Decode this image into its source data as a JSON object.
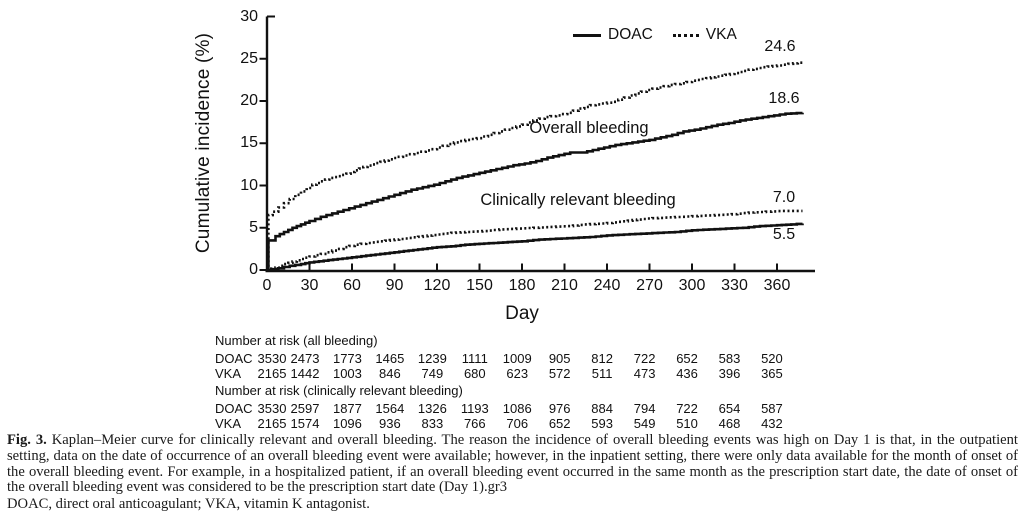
{
  "chart_data": {
    "type": "line",
    "subtype": "kaplan-meier-step",
    "ylabel": "Cumulative incidence (%)",
    "xlabel": "Day",
    "ylim": [
      0,
      30
    ],
    "xlim": [
      0,
      388
    ],
    "yticks": [
      0,
      5,
      10,
      15,
      20,
      25,
      30
    ],
    "xticks": [
      0,
      30,
      60,
      90,
      120,
      150,
      180,
      210,
      240,
      270,
      300,
      330,
      360
    ],
    "grid": false,
    "legend_position": "top-right-inside",
    "legend": [
      {
        "label": "DOAC",
        "style": "solid"
      },
      {
        "label": "VKA",
        "style": "dotted"
      }
    ],
    "annotations": {
      "overall": "Overall bleeding",
      "clinically_relevant": "Clinically relevant bleeding"
    },
    "series": [
      {
        "name": "VKA overall bleeding",
        "style": "dotted",
        "end_label": "24.6",
        "points": [
          [
            0,
            0
          ],
          [
            1,
            6.5
          ],
          [
            4,
            6.9
          ],
          [
            8,
            7.4
          ],
          [
            12,
            7.9
          ],
          [
            16,
            8.4
          ],
          [
            20,
            8.9
          ],
          [
            24,
            9.3
          ],
          [
            28,
            9.7
          ],
          [
            32,
            10.1
          ],
          [
            38,
            10.5
          ],
          [
            44,
            10.9
          ],
          [
            50,
            11.1
          ],
          [
            56,
            11.4
          ],
          [
            62,
            11.8
          ],
          [
            68,
            12.2
          ],
          [
            74,
            12.5
          ],
          [
            80,
            12.8
          ],
          [
            86,
            13.1
          ],
          [
            92,
            13.4
          ],
          [
            100,
            13.7
          ],
          [
            108,
            14.0
          ],
          [
            116,
            14.3
          ],
          [
            124,
            14.7
          ],
          [
            132,
            15.1
          ],
          [
            140,
            15.4
          ],
          [
            148,
            15.6
          ],
          [
            156,
            16.0
          ],
          [
            164,
            16.4
          ],
          [
            172,
            16.8
          ],
          [
            180,
            17.2
          ],
          [
            188,
            17.7
          ],
          [
            196,
            18.1
          ],
          [
            204,
            18.3
          ],
          [
            212,
            18.6
          ],
          [
            220,
            19.1
          ],
          [
            228,
            19.5
          ],
          [
            236,
            19.7
          ],
          [
            244,
            19.9
          ],
          [
            252,
            20.4
          ],
          [
            260,
            20.9
          ],
          [
            268,
            21.3
          ],
          [
            276,
            21.6
          ],
          [
            284,
            21.9
          ],
          [
            292,
            22.1
          ],
          [
            300,
            22.4
          ],
          [
            310,
            22.7
          ],
          [
            320,
            23.0
          ],
          [
            330,
            23.3
          ],
          [
            340,
            23.7
          ],
          [
            350,
            24.0
          ],
          [
            360,
            24.2
          ],
          [
            368,
            24.4
          ],
          [
            378,
            24.6
          ]
        ]
      },
      {
        "name": "DOAC overall bleeding",
        "style": "solid",
        "end_label": "18.6",
        "points": [
          [
            0,
            0
          ],
          [
            1,
            3.5
          ],
          [
            6,
            4.0
          ],
          [
            12,
            4.5
          ],
          [
            18,
            5.0
          ],
          [
            24,
            5.4
          ],
          [
            30,
            5.8
          ],
          [
            38,
            6.3
          ],
          [
            46,
            6.7
          ],
          [
            54,
            7.1
          ],
          [
            62,
            7.5
          ],
          [
            70,
            7.9
          ],
          [
            78,
            8.3
          ],
          [
            86,
            8.7
          ],
          [
            94,
            9.1
          ],
          [
            102,
            9.5
          ],
          [
            110,
            9.8
          ],
          [
            118,
            10.1
          ],
          [
            126,
            10.5
          ],
          [
            134,
            10.9
          ],
          [
            142,
            11.2
          ],
          [
            150,
            11.5
          ],
          [
            158,
            11.8
          ],
          [
            166,
            12.1
          ],
          [
            174,
            12.4
          ],
          [
            182,
            12.6
          ],
          [
            190,
            12.9
          ],
          [
            198,
            13.3
          ],
          [
            206,
            13.6
          ],
          [
            214,
            13.9
          ],
          [
            222,
            13.9
          ],
          [
            230,
            14.2
          ],
          [
            238,
            14.5
          ],
          [
            246,
            14.8
          ],
          [
            254,
            15.0
          ],
          [
            262,
            15.2
          ],
          [
            270,
            15.4
          ],
          [
            278,
            15.7
          ],
          [
            286,
            16.0
          ],
          [
            294,
            16.4
          ],
          [
            302,
            16.6
          ],
          [
            310,
            16.9
          ],
          [
            318,
            17.2
          ],
          [
            326,
            17.4
          ],
          [
            334,
            17.7
          ],
          [
            342,
            17.9
          ],
          [
            350,
            18.1
          ],
          [
            358,
            18.3
          ],
          [
            366,
            18.5
          ],
          [
            378,
            18.6
          ]
        ]
      },
      {
        "name": "VKA clinically relevant bleeding",
        "style": "dotted",
        "end_label": "7.0",
        "points": [
          [
            0,
            0
          ],
          [
            6,
            0.3
          ],
          [
            12,
            0.7
          ],
          [
            18,
            1.0
          ],
          [
            24,
            1.3
          ],
          [
            30,
            1.6
          ],
          [
            38,
            1.9
          ],
          [
            46,
            2.3
          ],
          [
            54,
            2.7
          ],
          [
            62,
            3.0
          ],
          [
            70,
            3.2
          ],
          [
            80,
            3.4
          ],
          [
            90,
            3.6
          ],
          [
            100,
            3.8
          ],
          [
            110,
            4.0
          ],
          [
            120,
            4.2
          ],
          [
            130,
            4.4
          ],
          [
            140,
            4.5
          ],
          [
            152,
            4.6
          ],
          [
            164,
            4.8
          ],
          [
            176,
            4.9
          ],
          [
            188,
            5.0
          ],
          [
            200,
            5.1
          ],
          [
            212,
            5.2
          ],
          [
            224,
            5.4
          ],
          [
            236,
            5.5
          ],
          [
            248,
            5.7
          ],
          [
            258,
            5.9
          ],
          [
            268,
            6.1
          ],
          [
            280,
            6.2
          ],
          [
            292,
            6.3
          ],
          [
            304,
            6.4
          ],
          [
            316,
            6.5
          ],
          [
            328,
            6.6
          ],
          [
            340,
            6.8
          ],
          [
            352,
            6.9
          ],
          [
            364,
            7.0
          ],
          [
            378,
            7.0
          ]
        ]
      },
      {
        "name": "DOAC clinically relevant bleeding",
        "style": "solid",
        "end_label": "5.5",
        "points": [
          [
            0,
            0
          ],
          [
            8,
            0.2
          ],
          [
            16,
            0.5
          ],
          [
            24,
            0.7
          ],
          [
            30,
            0.9
          ],
          [
            40,
            1.1
          ],
          [
            50,
            1.3
          ],
          [
            60,
            1.5
          ],
          [
            70,
            1.7
          ],
          [
            80,
            1.9
          ],
          [
            90,
            2.1
          ],
          [
            100,
            2.3
          ],
          [
            110,
            2.5
          ],
          [
            120,
            2.7
          ],
          [
            130,
            2.8
          ],
          [
            140,
            3.0
          ],
          [
            150,
            3.1
          ],
          [
            160,
            3.2
          ],
          [
            170,
            3.3
          ],
          [
            180,
            3.4
          ],
          [
            192,
            3.6
          ],
          [
            204,
            3.7
          ],
          [
            216,
            3.8
          ],
          [
            228,
            3.9
          ],
          [
            240,
            4.1
          ],
          [
            252,
            4.2
          ],
          [
            264,
            4.3
          ],
          [
            276,
            4.4
          ],
          [
            288,
            4.5
          ],
          [
            300,
            4.7
          ],
          [
            312,
            4.8
          ],
          [
            324,
            4.9
          ],
          [
            336,
            5.0
          ],
          [
            348,
            5.2
          ],
          [
            360,
            5.3
          ],
          [
            370,
            5.4
          ],
          [
            378,
            5.5
          ]
        ]
      }
    ]
  },
  "risk_tables": [
    {
      "title": "Number at risk (all bleeding)",
      "rows": [
        {
          "label": "DOAC",
          "values": [
            3530,
            2473,
            1773,
            1465,
            1239,
            1111,
            1009,
            905,
            812,
            722,
            652,
            583,
            520
          ]
        },
        {
          "label": "VKA",
          "values": [
            2165,
            1442,
            1003,
            846,
            749,
            680,
            623,
            572,
            511,
            473,
            436,
            396,
            365
          ]
        }
      ]
    },
    {
      "title": "Number at risk (clinically relevant bleeding)",
      "rows": [
        {
          "label": "DOAC",
          "values": [
            3530,
            2597,
            1877,
            1564,
            1326,
            1193,
            1086,
            976,
            884,
            794,
            722,
            654,
            587
          ]
        },
        {
          "label": "VKA",
          "values": [
            2165,
            1574,
            1096,
            936,
            833,
            766,
            706,
            652,
            593,
            549,
            510,
            468,
            432
          ]
        }
      ]
    }
  ],
  "caption": {
    "label": "Fig. 3.",
    "text": "Kaplan–Meier curve for clinically relevant and overall bleeding. The reason the incidence of overall bleeding events was high on Day 1 is that, in the outpatient setting, data on the date of occurrence of an overall bleeding event were available; however, in the inpatient setting, there were only data available for the month of onset of the overall bleeding event. For example, in a hospitalized patient, if an overall bleeding event occurred in the same month as the prescription start date, the date of onset of the overall bleeding event was considered to be the prescription start date (Day 1).gr3",
    "abbrev": "DOAC, direct oral anticoagulant; VKA, vitamin K antagonist."
  }
}
